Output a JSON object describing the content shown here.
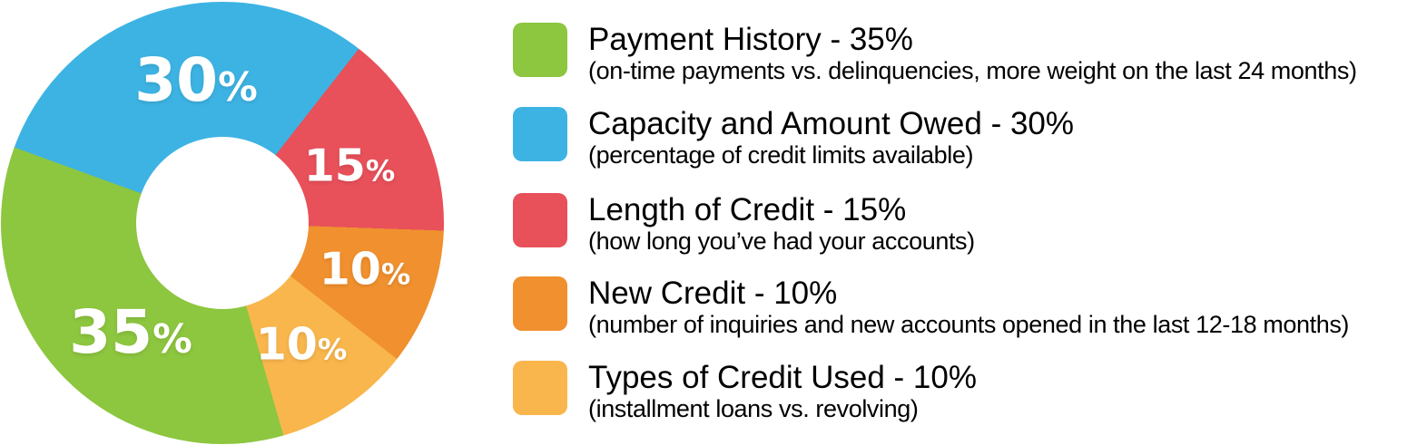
{
  "chart_data": {
    "type": "pie",
    "subtype": "donut",
    "title": "",
    "percent_symbol": "%",
    "start_angle_deg_from_top": -70,
    "clockwise_order": [
      1,
      2,
      3,
      4,
      0
    ],
    "hole_color": "#ffffff",
    "label_text_color": "#ffffff",
    "segments": [
      {
        "label": "Payment History",
        "value": 35,
        "display": "35%",
        "color": "#8DC63F",
        "description": "(on-time payments vs. delinquencies, more weight on the last 24 months)"
      },
      {
        "label": "Capacity and Amount Owed",
        "value": 30,
        "display": "30%",
        "color": "#3DB3E3",
        "description": "(percentage of credit limits available)"
      },
      {
        "label": "Length of Credit",
        "value": 15,
        "display": "15%",
        "color": "#E8505A",
        "description": "(how long you’ve had your accounts)"
      },
      {
        "label": "New Credit",
        "value": 10,
        "display": "10%",
        "color": "#F0902E",
        "description": "(number of inquiries and new accounts opened in the last 12-18 months)"
      },
      {
        "label": "Types of Credit Used",
        "value": 10,
        "display": "10%",
        "color": "#F9B64D",
        "description": "(installment loans vs. revolving)"
      }
    ]
  },
  "legend": {
    "items": [
      {
        "title": "Payment History - 35%",
        "subtitle": "(on-time payments vs. delinquencies, more weight on the last 24 months)",
        "color": "#8DC63F"
      },
      {
        "title": "Capacity and Amount Owed - 30%",
        "subtitle": "(percentage of credit limits available)",
        "color": "#3DB3E3"
      },
      {
        "title": "Length of Credit - 15%",
        "subtitle": "(how long you’ve had your accounts)",
        "color": "#E8505A"
      },
      {
        "title": "New Credit - 10%",
        "subtitle": "(number of inquiries and new accounts opened in the last 12-18 months)",
        "color": "#F0902E"
      },
      {
        "title": "Types of Credit Used - 10%",
        "subtitle": "(installment loans vs. revolving)",
        "color": "#F9B64D"
      }
    ]
  }
}
